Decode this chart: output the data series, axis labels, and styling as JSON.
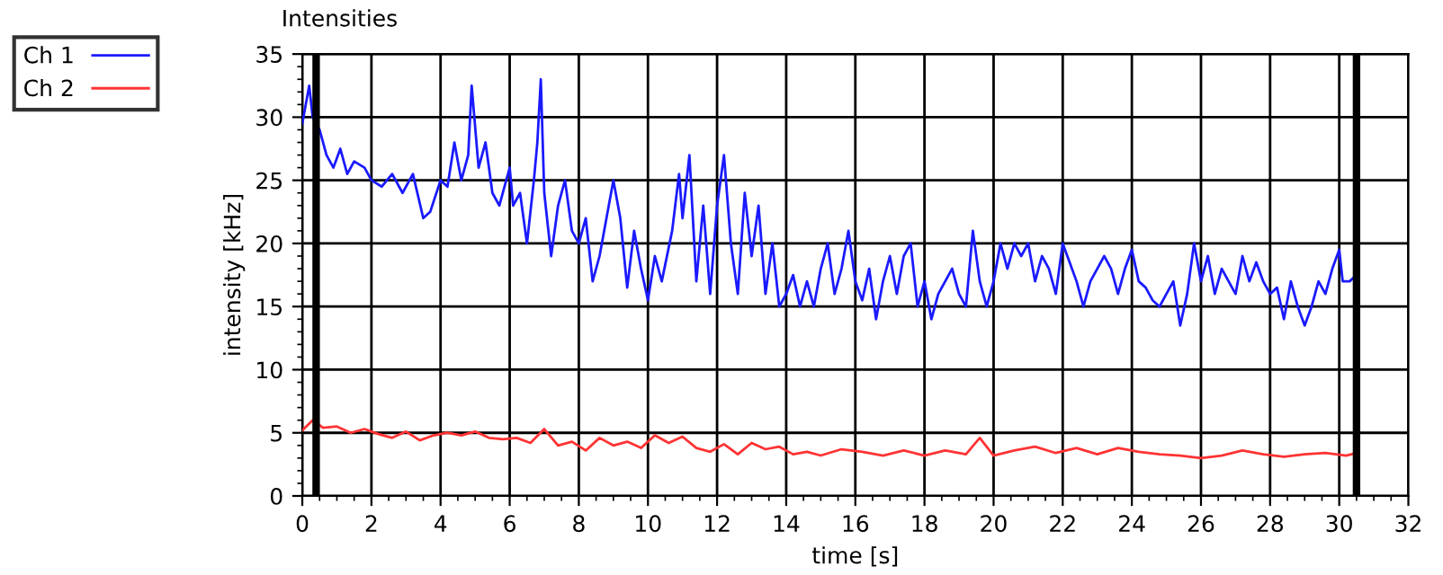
{
  "chart_data": {
    "type": "line",
    "title": "Intensities",
    "xlabel": "time [s]",
    "ylabel": "intensity [kHz]",
    "xlim": [
      0,
      32
    ],
    "xticks": [
      0,
      2,
      4,
      6,
      8,
      10,
      12,
      14,
      16,
      18,
      20,
      22,
      24,
      26,
      28,
      30,
      32
    ],
    "ylim": [
      0,
      35
    ],
    "yticks": [
      0,
      5,
      10,
      15,
      20,
      25,
      30,
      35
    ],
    "grid": true,
    "legend": "top left",
    "ref_lines": [
      {
        "axis": "x",
        "value": 0.4,
        "color": "#000000"
      },
      {
        "axis": "x",
        "value": 30.5,
        "color": "#000000"
      }
    ],
    "series": [
      {
        "name": "Ch 1",
        "color": "#1a1aff",
        "x": [
          0,
          0.2,
          0.3,
          0.5,
          0.7,
          0.9,
          1.1,
          1.3,
          1.5,
          1.8,
          2.0,
          2.3,
          2.6,
          2.9,
          3.2,
          3.5,
          3.7,
          4.0,
          4.2,
          4.4,
          4.6,
          4.8,
          4.9,
          5.1,
          5.3,
          5.5,
          5.7,
          5.9,
          6.0,
          6.1,
          6.3,
          6.5,
          6.7,
          6.8,
          6.9,
          7.0,
          7.2,
          7.4,
          7.6,
          7.8,
          8.0,
          8.2,
          8.4,
          8.6,
          8.8,
          9.0,
          9.2,
          9.4,
          9.6,
          9.8,
          10.0,
          10.2,
          10.4,
          10.7,
          10.9,
          11.0,
          11.2,
          11.4,
          11.6,
          11.8,
          12.0,
          12.2,
          12.4,
          12.6,
          12.8,
          13.0,
          13.2,
          13.4,
          13.6,
          13.8,
          14.0,
          14.2,
          14.4,
          14.6,
          14.8,
          15.0,
          15.2,
          15.4,
          15.6,
          15.8,
          16.0,
          16.2,
          16.4,
          16.6,
          16.8,
          17.0,
          17.2,
          17.4,
          17.6,
          17.8,
          18.0,
          18.2,
          18.4,
          18.6,
          18.8,
          19.0,
          19.2,
          19.4,
          19.6,
          19.8,
          20.0,
          20.2,
          20.4,
          20.6,
          20.8,
          21.0,
          21.2,
          21.4,
          21.6,
          21.8,
          22.0,
          22.2,
          22.4,
          22.6,
          22.8,
          23.0,
          23.2,
          23.4,
          23.6,
          23.8,
          24.0,
          24.2,
          24.4,
          24.6,
          24.8,
          25.0,
          25.2,
          25.4,
          25.6,
          25.8,
          26.0,
          26.2,
          26.4,
          26.6,
          26.8,
          27.0,
          27.2,
          27.4,
          27.6,
          27.8,
          28.0,
          28.2,
          28.4,
          28.6,
          28.8,
          29.0,
          29.2,
          29.4,
          29.6,
          29.8,
          30.0,
          30.1,
          30.3,
          30.5
        ],
        "values": [
          29.5,
          32.5,
          30,
          29,
          27,
          26,
          27.5,
          25.5,
          26.5,
          26,
          25,
          24.5,
          25.5,
          24,
          25.5,
          22,
          22.5,
          25,
          24.5,
          28,
          25,
          27,
          32.5,
          26,
          28,
          24,
          23,
          25,
          26,
          23,
          24,
          20,
          25,
          28,
          33,
          24,
          19,
          23,
          25,
          21,
          20,
          22,
          17,
          19,
          22,
          25,
          22,
          16.5,
          21,
          18,
          15.5,
          19,
          17,
          21,
          25.5,
          22,
          27,
          17,
          23,
          16,
          23,
          27,
          20,
          16,
          24,
          19,
          23,
          16,
          20,
          15,
          16,
          17.5,
          15,
          17,
          15,
          18,
          20,
          16,
          18,
          21,
          17,
          15.5,
          18,
          14,
          17,
          19,
          16,
          19,
          20,
          15,
          17,
          14,
          16,
          17,
          18,
          16,
          15,
          21,
          17,
          15,
          17,
          20,
          18,
          20,
          19,
          20,
          17,
          19,
          18,
          16,
          20,
          18.5,
          17,
          15,
          17,
          18,
          19,
          18,
          16,
          18,
          19.5,
          17,
          16.5,
          15.5,
          15,
          16,
          17,
          13.5,
          16,
          20,
          17,
          19,
          16,
          18,
          17,
          16,
          19,
          17,
          18.5,
          17,
          16,
          16.5,
          14,
          17,
          15,
          13.5,
          15,
          17,
          16,
          18,
          19.5,
          17,
          17,
          17.5
        ]
      },
      {
        "name": "Ch 2",
        "color": "#ff3333",
        "x": [
          0,
          0.3,
          0.6,
          1.0,
          1.4,
          1.8,
          2.2,
          2.6,
          3.0,
          3.4,
          3.8,
          4.2,
          4.6,
          5.0,
          5.4,
          5.8,
          6.2,
          6.6,
          7.0,
          7.4,
          7.8,
          8.2,
          8.6,
          9.0,
          9.4,
          9.8,
          10.2,
          10.6,
          11.0,
          11.4,
          11.8,
          12.2,
          12.6,
          13.0,
          13.4,
          13.8,
          14.2,
          14.6,
          15.0,
          15.6,
          16.2,
          16.8,
          17.4,
          18.0,
          18.6,
          19.2,
          19.6,
          20.0,
          20.6,
          21.2,
          21.8,
          22.4,
          23.0,
          23.6,
          24.2,
          24.8,
          25.4,
          26.0,
          26.6,
          27.2,
          27.8,
          28.4,
          29.0,
          29.6,
          30.2,
          30.5
        ],
        "values": [
          5.2,
          6.0,
          5.4,
          5.5,
          5.0,
          5.3,
          4.9,
          4.6,
          5.1,
          4.4,
          4.8,
          5.0,
          4.8,
          5.1,
          4.6,
          4.5,
          4.6,
          4.2,
          5.3,
          4.0,
          4.3,
          3.6,
          4.6,
          4.0,
          4.3,
          3.8,
          4.8,
          4.2,
          4.7,
          3.8,
          3.5,
          4.1,
          3.3,
          4.2,
          3.7,
          3.9,
          3.3,
          3.5,
          3.2,
          3.7,
          3.5,
          3.2,
          3.6,
          3.2,
          3.6,
          3.3,
          4.6,
          3.2,
          3.6,
          3.9,
          3.4,
          3.8,
          3.3,
          3.8,
          3.5,
          3.3,
          3.2,
          3.0,
          3.2,
          3.6,
          3.3,
          3.1,
          3.3,
          3.4,
          3.2,
          3.4
        ]
      }
    ]
  }
}
